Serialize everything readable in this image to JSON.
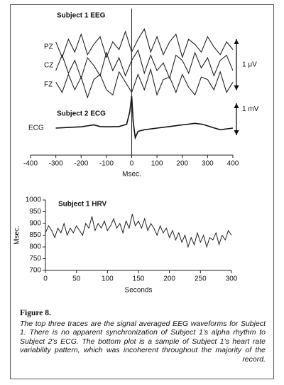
{
  "chart_data": [
    {
      "type": "line",
      "title": "Subject 1 EEG",
      "annotations": [
        "Subject 2 ECG"
      ],
      "xlabel": "Msec.",
      "xlim": [
        -400,
        400
      ],
      "xticks": [
        -400,
        -300,
        -200,
        -100,
        0,
        100,
        200,
        300,
        400
      ],
      "scale_bars": [
        {
          "label": "1 μV",
          "value": 1
        },
        {
          "label": "1 mV",
          "value": 1
        }
      ],
      "series": [
        {
          "name": "PZ",
          "color": "#222",
          "x": [
            -300,
            -275,
            -250,
            -225,
            -200,
            -175,
            -150,
            -125,
            -100,
            -75,
            -50,
            -25,
            0,
            25,
            50,
            75,
            100,
            125,
            150,
            175,
            200,
            225,
            250,
            275,
            300,
            325,
            350,
            375,
            400
          ],
          "values": [
            0.1,
            -0.2,
            0.15,
            -0.1,
            0.25,
            -0.15,
            0.05,
            0.2,
            -0.2,
            0.1,
            -0.05,
            0.3,
            -0.1,
            0.15,
            0.35,
            -0.1,
            0.2,
            -0.15,
            0.1,
            0.25,
            -0.2,
            0.15,
            0.05,
            -0.1,
            0.2,
            0,
            -0.15,
            0.1,
            -0.05
          ]
        },
        {
          "name": "CZ",
          "color": "#222",
          "x": [
            -300,
            -275,
            -250,
            -225,
            -200,
            -175,
            -150,
            -125,
            -100,
            -75,
            -50,
            -25,
            0,
            25,
            50,
            75,
            100,
            125,
            150,
            175,
            200,
            225,
            250,
            275,
            300,
            325,
            350,
            375,
            400
          ],
          "values": [
            -0.1,
            0.2,
            -0.15,
            0.1,
            -0.25,
            0.15,
            0,
            -0.2,
            0.25,
            -0.1,
            0.15,
            -0.2,
            0.1,
            0.3,
            -0.15,
            0.2,
            -0.1,
            0.05,
            -0.25,
            0.2,
            0.1,
            -0.15,
            0.25,
            -0.05,
            0.15,
            -0.2,
            0.1,
            0.2,
            -0.1
          ]
        },
        {
          "name": "FZ",
          "color": "#222",
          "x": [
            -300,
            -275,
            -250,
            -225,
            -200,
            -175,
            -150,
            -125,
            -100,
            -75,
            -50,
            -25,
            0,
            25,
            50,
            75,
            100,
            125,
            150,
            175,
            200,
            225,
            250,
            275,
            300,
            325,
            350,
            375,
            400
          ],
          "values": [
            0.05,
            -0.15,
            0.2,
            -0.1,
            0.15,
            -0.25,
            0.1,
            0.2,
            -0.1,
            -0.2,
            0.25,
            0.05,
            -0.15,
            0.2,
            -0.1,
            0.3,
            -0.2,
            0.1,
            0.15,
            -0.15,
            0.2,
            -0.05,
            -0.2,
            0.15,
            0.1,
            -0.1,
            0.25,
            -0.15,
            0.05
          ]
        },
        {
          "name": "ECG",
          "color": "#111",
          "x": [
            -300,
            -250,
            -200,
            -150,
            -125,
            -100,
            -50,
            -20,
            -8,
            0,
            6,
            14,
            25,
            50,
            100,
            150,
            200,
            250,
            280,
            320,
            350,
            400
          ],
          "values": [
            0,
            0.02,
            0.04,
            0.1,
            0.05,
            0.04,
            0.05,
            0.12,
            0.5,
            1.0,
            0.2,
            -0.3,
            -0.1,
            -0.05,
            0,
            0.05,
            0.1,
            0.15,
            0.12,
            0.02,
            -0.05,
            0
          ]
        }
      ]
    },
    {
      "type": "line",
      "title": "Subject 1 HRV",
      "xlabel": "Seconds",
      "ylabel": "Msec.",
      "xlim": [
        0,
        300
      ],
      "xticks": [
        0,
        50,
        100,
        150,
        200,
        250,
        300
      ],
      "ylim": [
        700,
        1000
      ],
      "yticks": [
        700,
        750,
        800,
        850,
        900,
        950,
        1000
      ],
      "series": [
        {
          "color": "#222",
          "x": [
            0,
            5,
            10,
            15,
            20,
            25,
            30,
            35,
            40,
            45,
            50,
            55,
            60,
            65,
            70,
            75,
            80,
            85,
            90,
            95,
            100,
            105,
            110,
            115,
            120,
            125,
            130,
            135,
            140,
            145,
            150,
            155,
            160,
            165,
            170,
            175,
            180,
            185,
            190,
            195,
            200,
            205,
            210,
            215,
            220,
            225,
            230,
            235,
            240,
            245,
            250,
            255,
            260,
            265,
            270,
            275,
            280,
            285,
            290,
            295,
            300
          ],
          "values": [
            860,
            890,
            870,
            840,
            880,
            860,
            900,
            850,
            880,
            860,
            890,
            870,
            850,
            900,
            880,
            930,
            870,
            900,
            880,
            910,
            870,
            890,
            920,
            880,
            900,
            860,
            910,
            880,
            940,
            890,
            910,
            880,
            920,
            870,
            900,
            880,
            850,
            890,
            860,
            880,
            840,
            870,
            830,
            860,
            820,
            850,
            800,
            840,
            810,
            860,
            820,
            850,
            800,
            840,
            830,
            860,
            810,
            850,
            830,
            870,
            850
          ]
        }
      ]
    }
  ],
  "caption": {
    "title": "Figure 8.",
    "text": "The top three traces are the signal averaged EEG waveforms for Subject 1. There is no apparent synchronization of Subject 1's alpha rhythm to Subject 2's ECG. The bottom plot is a sample of Subject 1's heart rate variability pattern, which was incoherent throughout the majority of the record."
  }
}
